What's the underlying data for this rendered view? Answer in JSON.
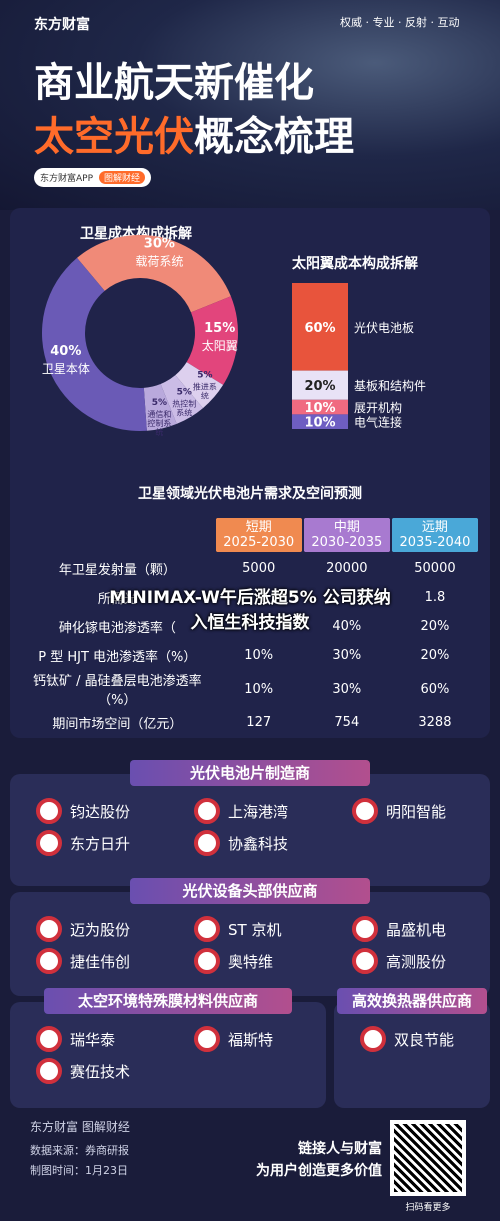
{
  "header": {
    "brand": "东方财富",
    "tagline": "权威 · 专业 · 反射 · 互动",
    "title_line1": "商业航天新催化",
    "title_line2_highlight": "太空光伏",
    "title_line2_rest": "概念梳理",
    "badge_app": "东方财富APP",
    "badge_tag": "图解财经"
  },
  "satellite_cost": {
    "title": "卫星成本构成拆解",
    "segments": [
      {
        "name": "载荷系统",
        "value": 30,
        "label": "30%",
        "color": "#f08a78"
      },
      {
        "name": "太阳翼",
        "value": 15,
        "label": "15%",
        "color": "#e2457c"
      },
      {
        "name": "推进系统",
        "value": 5,
        "label": "5%",
        "color": "#ddd0ee"
      },
      {
        "name": "热控制系统",
        "value": 5,
        "label": "5%",
        "color": "#cbbce6"
      },
      {
        "name": "通信和控制系统",
        "value": 5,
        "label": "5%",
        "color": "#b9a9dc"
      },
      {
        "name": "卫星本体",
        "value": 40,
        "label": "40%",
        "color": "#6a5ab6"
      }
    ]
  },
  "solar_wing_cost": {
    "title": "太阳翼成本构成拆解",
    "segments": [
      {
        "name": "光伏电池板",
        "value": 60,
        "label": "60%",
        "color": "#e8543c"
      },
      {
        "name": "基板和结构件",
        "value": 20,
        "label": "20%",
        "color": "#e8e2f6"
      },
      {
        "name": "展开机构",
        "value": 10,
        "label": "10%",
        "color": "#f06a80"
      },
      {
        "name": "电气连接",
        "value": 10,
        "label": "10%",
        "color": "#6e5ec2"
      }
    ]
  },
  "forecast_table": {
    "title": "卫星领域光伏电池片需求及空间预测",
    "columns": [
      {
        "name": "短期",
        "period": "2025-2030"
      },
      {
        "name": "中期",
        "period": "2030-2035"
      },
      {
        "name": "远期",
        "period": "2035-2040"
      }
    ],
    "rows": [
      [
        "年卫星发射量（颗）",
        "5000",
        "20000",
        "50000"
      ],
      [
        "所需光",
        null,
        null,
        "1.8"
      ],
      [
        "砷化镓电池渗透率（",
        null,
        "40%",
        "20%"
      ],
      [
        "P 型 HJT 电池渗透率（%）",
        "10%",
        "30%",
        "20%"
      ],
      [
        "钙钛矿 / 晶硅叠层电池渗透率（%）",
        "10%",
        "30%",
        "60%"
      ],
      [
        "期间市场空间（亿元）",
        "127",
        "754",
        "3288"
      ]
    ]
  },
  "overlay": {
    "line1": "MINIMAX-W午后涨超5% 公司获纳",
    "line2": "入恒生科技指数"
  },
  "suppliers": [
    {
      "title": "光伏电池片制造商",
      "companies": [
        "钧达股份",
        "上海港湾",
        "明阳智能",
        "东方日升",
        "协鑫科技"
      ]
    },
    {
      "title": "光伏设备头部供应商",
      "companies": [
        "迈为股份",
        "ST 京机",
        "晶盛机电",
        "捷佳伟创",
        "奥特维",
        "高测股份"
      ]
    },
    {
      "title": "太空环境特殊膜材料供应商",
      "companies": [
        "瑞华泰",
        "福斯特",
        "赛伍技术"
      ]
    },
    {
      "title": "高效换热器供应商",
      "companies": [
        "双良节能"
      ]
    }
  ],
  "footer": {
    "brand": "东方财富 图解财经",
    "source": "数据来源：券商研报",
    "date": "制图时间：1月23日",
    "slogan1": "链接人与财富",
    "slogan2": "为用户创造更多价值",
    "qr_caption": "扫码看更多"
  }
}
